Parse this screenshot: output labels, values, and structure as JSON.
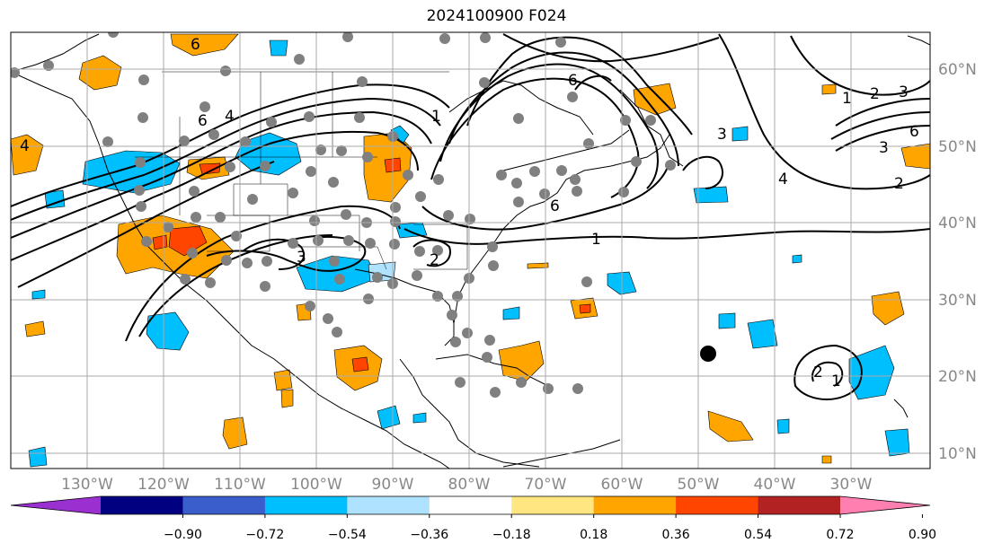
{
  "title": "2024100900 F024",
  "map": {
    "lon_labels": [
      "130°W",
      "120°W",
      "110°W",
      "100°W",
      "90°W",
      "80°W",
      "70°W",
      "60°W",
      "50°W",
      "40°W",
      "30°W"
    ],
    "lat_labels": [
      "60°N",
      "50°N",
      "40°N",
      "30°N",
      "20°N",
      "10°N"
    ],
    "contour_labels": [
      "6",
      "4",
      "6",
      "1",
      "2",
      "3",
      "6",
      "4",
      "2",
      "1",
      "3",
      "3",
      "2",
      "3",
      "6",
      "1",
      "2",
      "1",
      "4",
      "6"
    ]
  },
  "colorbar": {
    "colors": [
      "#9b30d0",
      "#000080",
      "#3a5fcd",
      "#00bfff",
      "#aee2ff",
      "#ffffff",
      "#ffe680",
      "#ffa500",
      "#ff4500",
      "#b22222",
      "#ff80b0"
    ],
    "ticks": [
      "−0.90",
      "−0.72",
      "−0.54",
      "−0.36",
      "−0.18",
      "0.18",
      "0.36",
      "0.54",
      "0.72",
      "0.90"
    ]
  }
}
